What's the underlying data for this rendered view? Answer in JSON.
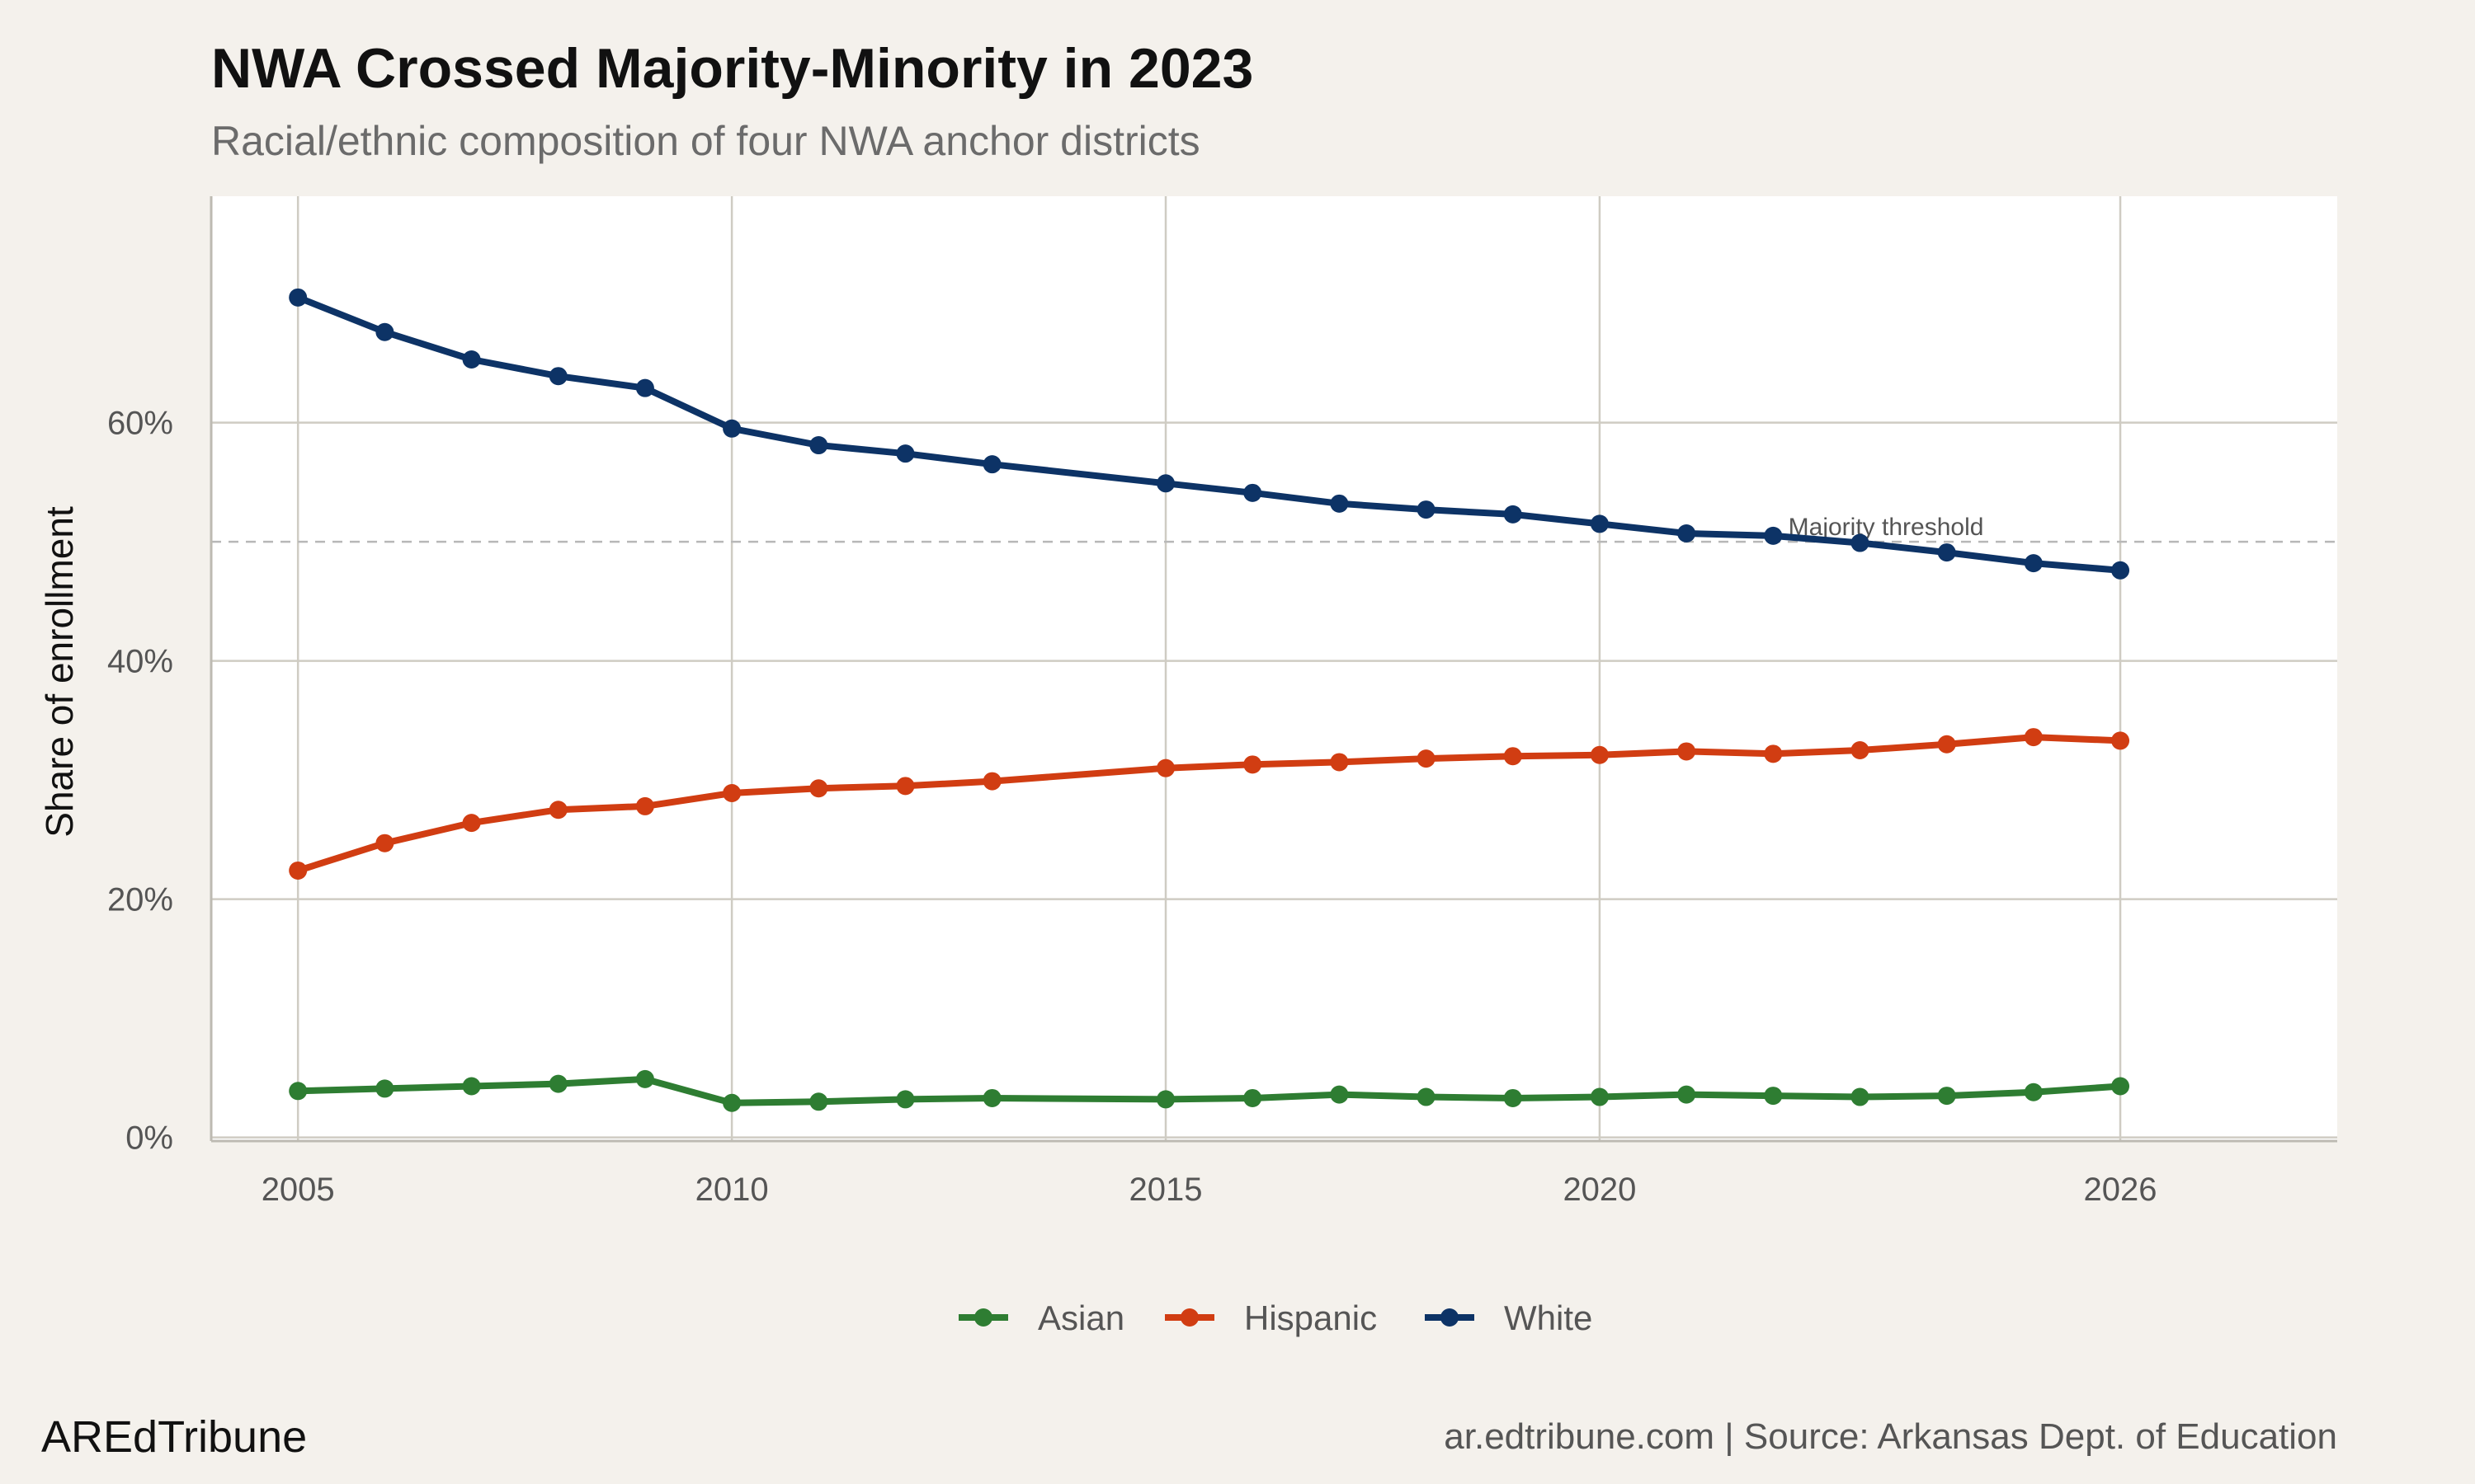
{
  "header": {
    "title": "NWA Crossed Majority-Minority in 2023",
    "subtitle": "Racial/ethnic composition of four NWA anchor districts"
  },
  "footer": {
    "brand": "AREdTribune",
    "credit": "ar.edtribune.com | Source: Arkansas Dept. of Education"
  },
  "chart_data": {
    "type": "line",
    "title": "NWA Crossed Majority-Minority in 2023",
    "subtitle": "Racial/ethnic composition of four NWA anchor districts",
    "xlabel": "",
    "ylabel": "Share of enrollment",
    "xlim": [
      2004,
      2028.5
    ],
    "ylim": [
      -0.3,
      79
    ],
    "x_ticks": [
      2005,
      2010,
      2015,
      2020,
      2026
    ],
    "x_tick_labels": [
      "2005",
      "2010",
      "2015",
      "2020",
      "2026"
    ],
    "y_ticks": [
      0,
      20,
      40,
      60
    ],
    "y_tick_labels": [
      "0%",
      "20%",
      "40%",
      "60%"
    ],
    "grid": true,
    "legend_position": "bottom",
    "reference_line": {
      "y": 50,
      "label": "Majority threshold",
      "style": "dashed"
    },
    "x": [
      2005,
      2006,
      2007,
      2008,
      2009,
      2010,
      2011,
      2012,
      2013,
      2015,
      2016,
      2017,
      2018,
      2019,
      2020,
      2021,
      2022,
      2023,
      2024,
      2025,
      2026
    ],
    "series": [
      {
        "name": "Asian",
        "color": "#2e7d32",
        "values": [
          3.9,
          4.1,
          4.3,
          4.5,
          4.9,
          2.9,
          3.0,
          3.2,
          3.3,
          3.2,
          3.3,
          3.6,
          3.4,
          3.3,
          3.4,
          3.6,
          3.5,
          3.4,
          3.5,
          3.8,
          4.3
        ]
      },
      {
        "name": "Hispanic",
        "color": "#d13d12",
        "values": [
          22.4,
          24.7,
          26.4,
          27.5,
          27.8,
          28.9,
          29.3,
          29.5,
          29.9,
          31.0,
          31.3,
          31.5,
          31.8,
          32.0,
          32.1,
          32.4,
          32.2,
          32.5,
          33.0,
          33.6,
          33.3
        ]
      },
      {
        "name": "White",
        "color": "#0d3366",
        "values": [
          70.5,
          67.6,
          65.3,
          63.9,
          62.9,
          59.5,
          58.1,
          57.4,
          56.5,
          54.9,
          54.1,
          53.2,
          52.7,
          52.3,
          51.5,
          50.7,
          50.5,
          49.9,
          49.1,
          48.2,
          47.6
        ]
      }
    ]
  }
}
